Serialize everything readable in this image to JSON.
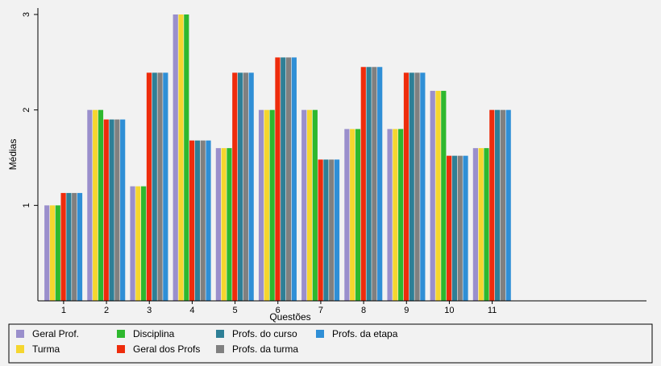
{
  "chart_data": {
    "type": "bar",
    "title": "",
    "xlabel": "Questões",
    "ylabel": "Médias",
    "ylim": [
      0.0,
      3.0
    ],
    "yticks": [
      1,
      2,
      3
    ],
    "xrange": [
      0.4,
      14.6
    ],
    "grid": false,
    "legend_position": "bottom",
    "categories": [
      "1",
      "2",
      "3",
      "4",
      "5",
      "6",
      "7",
      "8",
      "9",
      "10",
      "11"
    ],
    "series": [
      {
        "name": "Geral Prof.",
        "color": "#9a8fcc",
        "values": [
          1.0,
          2.0,
          1.2,
          3.0,
          1.6,
          2.0,
          2.0,
          1.8,
          1.8,
          2.2,
          1.6
        ]
      },
      {
        "name": "Turma",
        "color": "#f5d62f",
        "values": [
          1.0,
          2.0,
          1.2,
          3.0,
          1.6,
          2.0,
          2.0,
          1.8,
          1.8,
          2.2,
          1.6
        ]
      },
      {
        "name": "Disciplina",
        "color": "#2eb82e",
        "values": [
          1.0,
          2.0,
          1.2,
          3.0,
          1.6,
          2.0,
          2.0,
          1.8,
          1.8,
          2.2,
          1.6
        ]
      },
      {
        "name": "Geral dos Profs",
        "color": "#ee2c0c",
        "values": [
          1.13,
          1.9,
          2.39,
          1.68,
          2.39,
          2.55,
          1.48,
          2.45,
          2.39,
          1.52,
          2.0
        ]
      },
      {
        "name": "Profs. do curso",
        "color": "#2e7f96",
        "values": [
          1.13,
          1.9,
          2.39,
          1.68,
          2.39,
          2.55,
          1.48,
          2.45,
          2.39,
          1.52,
          2.0
        ]
      },
      {
        "name": "Profs. da turma",
        "color": "#808080",
        "values": [
          1.13,
          1.9,
          2.39,
          1.68,
          2.39,
          2.55,
          1.48,
          2.45,
          2.39,
          1.52,
          2.0
        ]
      },
      {
        "name": "Profs. da etapa",
        "color": "#2f8fd6",
        "values": [
          1.13,
          1.9,
          2.39,
          1.68,
          2.39,
          2.55,
          1.48,
          2.45,
          2.39,
          1.52,
          2.0
        ]
      }
    ]
  }
}
